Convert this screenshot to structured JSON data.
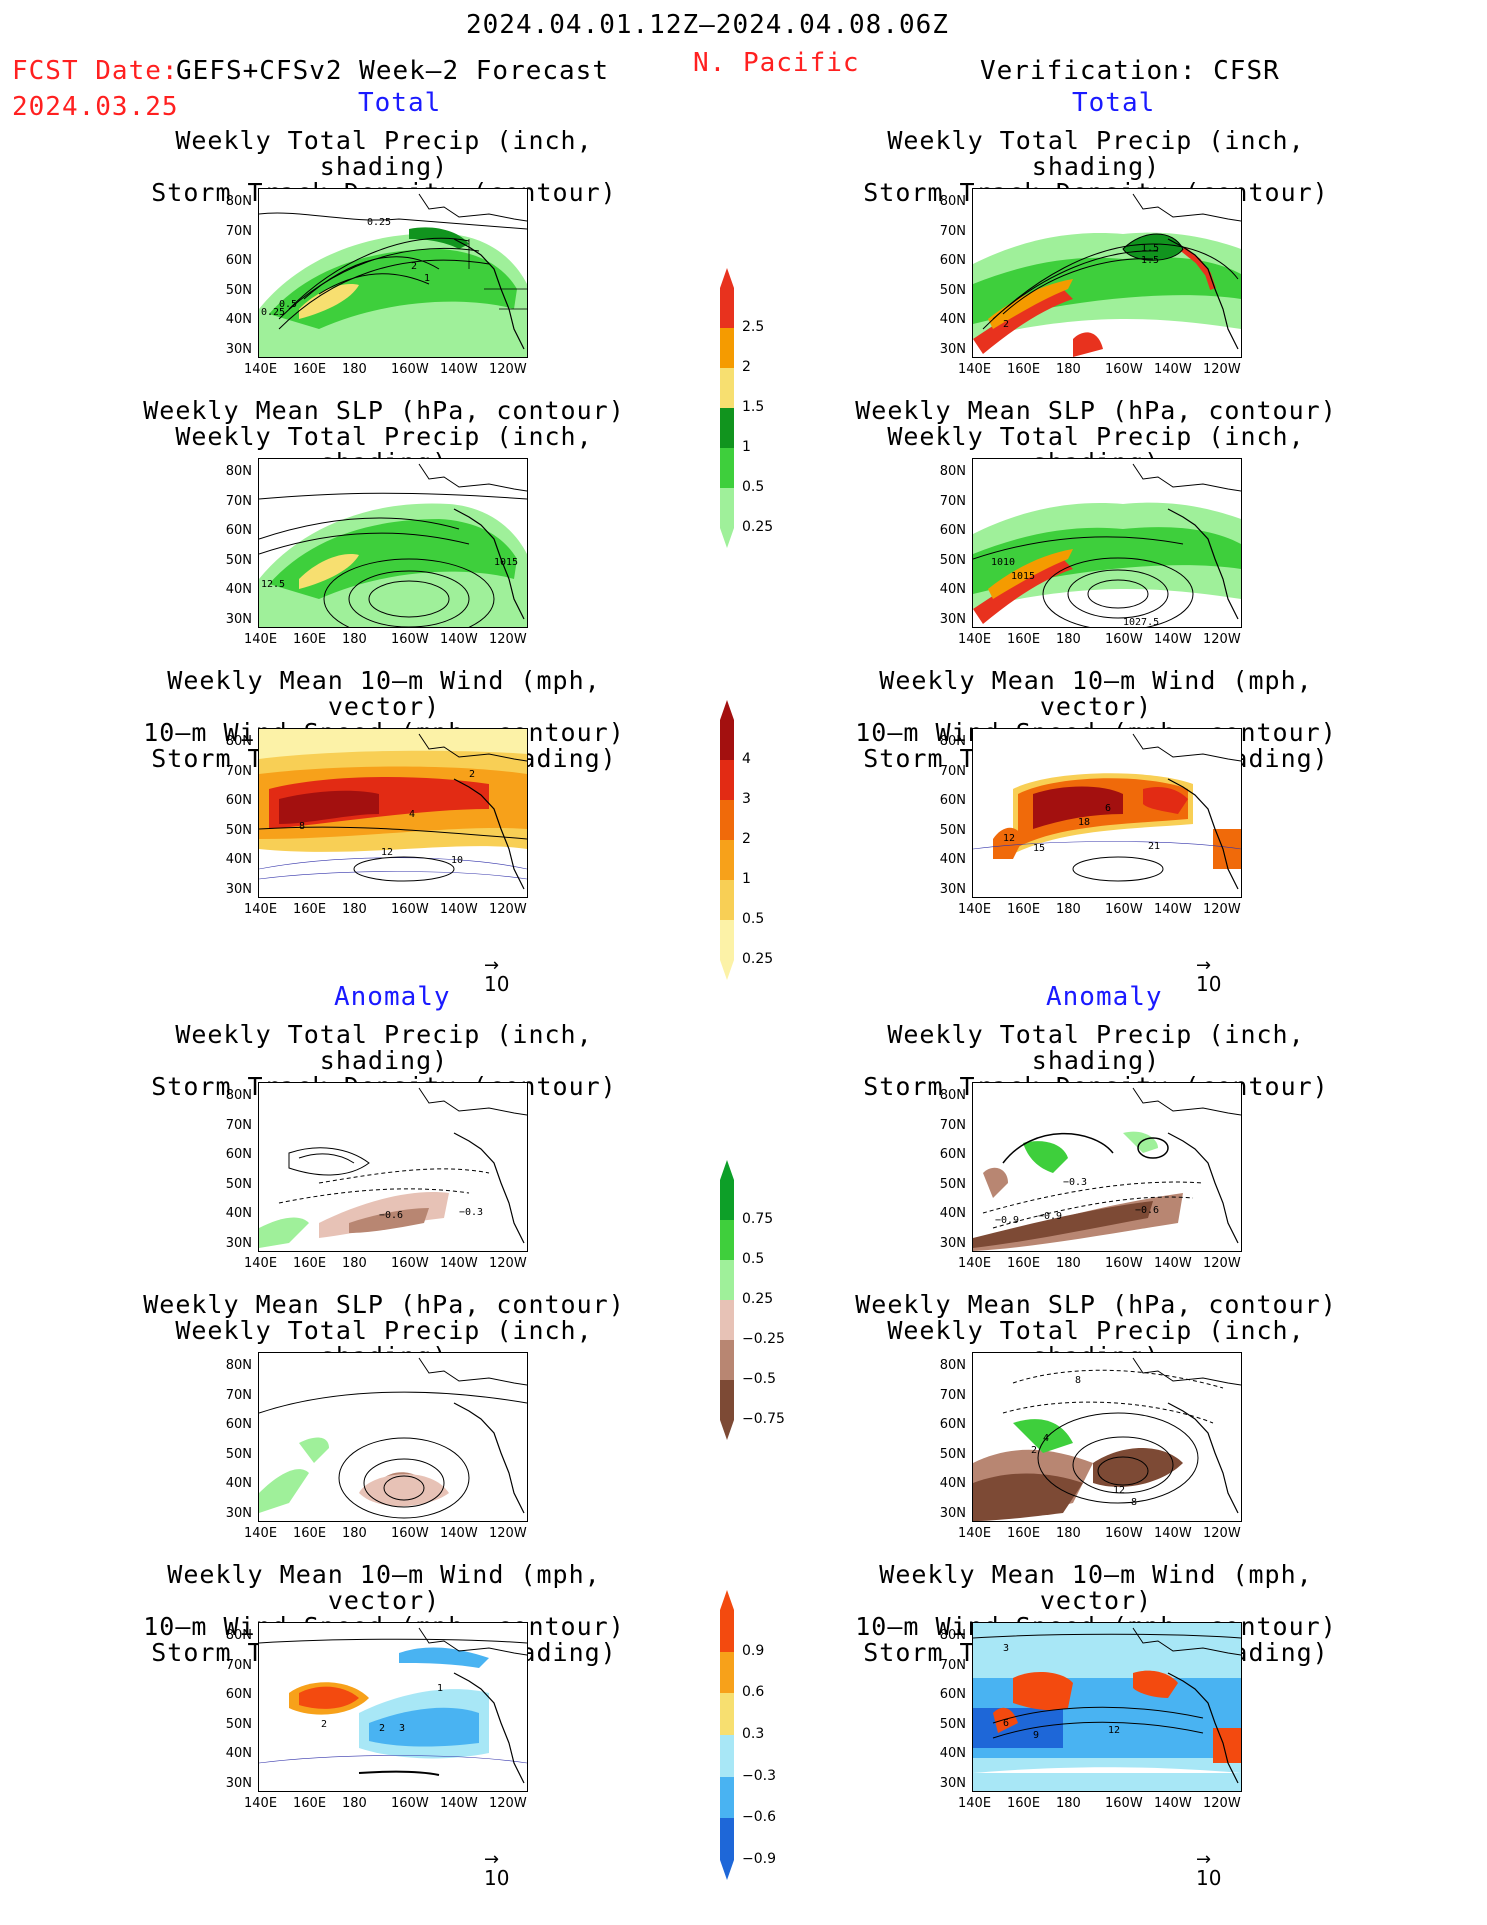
{
  "header": {
    "period": "2024.04.01.12Z–2024.04.08.06Z",
    "fcst_date_label": "FCST Date:",
    "fcst_date_value": "2024.03.25",
    "forecast_name": "GEFS+CFSv2 Week–2 Forecast",
    "region": "N. Pacific",
    "verification": "Verification: CFSR",
    "section_total": "Total",
    "section_anomaly": "Anomaly"
  },
  "titles": {
    "precip_storm": [
      "Weekly Total Precip (inch, shading)",
      "Storm Track Density (contour)"
    ],
    "slp_precip": [
      "Weekly Mean SLP (hPa, contour)",
      "Weekly Total Precip (inch, shading)"
    ],
    "wind_storm": [
      "Weekly Mean 10–m Wind (mph, vector)",
      "10–m Wind Speed (mph, contour)",
      "Storm Track Density (shading)"
    ]
  },
  "axes": {
    "lat": [
      "80N",
      "70N",
      "60N",
      "50N",
      "40N",
      "30N"
    ],
    "lon": [
      "140E",
      "160E",
      "180",
      "160W",
      "140W",
      "120W"
    ],
    "vector_ref": "10"
  },
  "colorbars": {
    "precip_total": {
      "labels": [
        "2.5",
        "2",
        "1.5",
        "1",
        "0.5",
        "0.25"
      ],
      "colors": [
        "#e8321e",
        "#f59b00",
        "#f7df70",
        "#11941e",
        "#3ecf3c",
        "#9ff09a"
      ]
    },
    "storm_total": {
      "labels": [
        "4",
        "3",
        "2",
        "1",
        "0.5",
        "0.25"
      ],
      "colors": [
        "#a3100f",
        "#e22b14",
        "#f06a0a",
        "#f7a11a",
        "#f8cf55",
        "#fcf2a7"
      ]
    },
    "precip_anom": {
      "labels": [
        "0.75",
        "0.5",
        "0.25",
        "−0.25",
        "−0.5",
        "−0.75"
      ],
      "colors": [
        "#0d9f28",
        "#3fcf3c",
        "#9ff09a",
        "#e7c2b6",
        "#b88672",
        "#7d4a35"
      ]
    },
    "storm_anom": {
      "labels": [
        "0.9",
        "0.6",
        "0.3",
        "−0.3",
        "−0.6",
        "−0.9"
      ],
      "colors": [
        "#f34a0f",
        "#f7a11a",
        "#f7df70",
        "#a8e7f6",
        "#49b3f2",
        "#1e67d8"
      ]
    }
  },
  "map_labels": {
    "l1": [
      "0.25",
      "2",
      "1",
      "0.5",
      "0.25"
    ],
    "r1": [
      "1.5",
      "1.5",
      "2"
    ],
    "l2": [
      "1015",
      "12.5"
    ],
    "r2": [
      "1010",
      "1015",
      "1027.5"
    ],
    "l3": [
      "2",
      "4",
      "8",
      "12",
      "10"
    ],
    "r3": [
      "12",
      "15",
      "18",
      "6",
      "21"
    ],
    "l4": [
      "−0.6",
      "−0.3"
    ],
    "r4": [
      "−0.3",
      "−0.9",
      "−0.9",
      "−0.6"
    ],
    "r5": [
      "8",
      "4",
      "2",
      "12",
      "8"
    ],
    "l6": [
      "1",
      "2",
      "2",
      "3"
    ],
    "r6": [
      "3",
      "6",
      "9",
      "12"
    ]
  }
}
